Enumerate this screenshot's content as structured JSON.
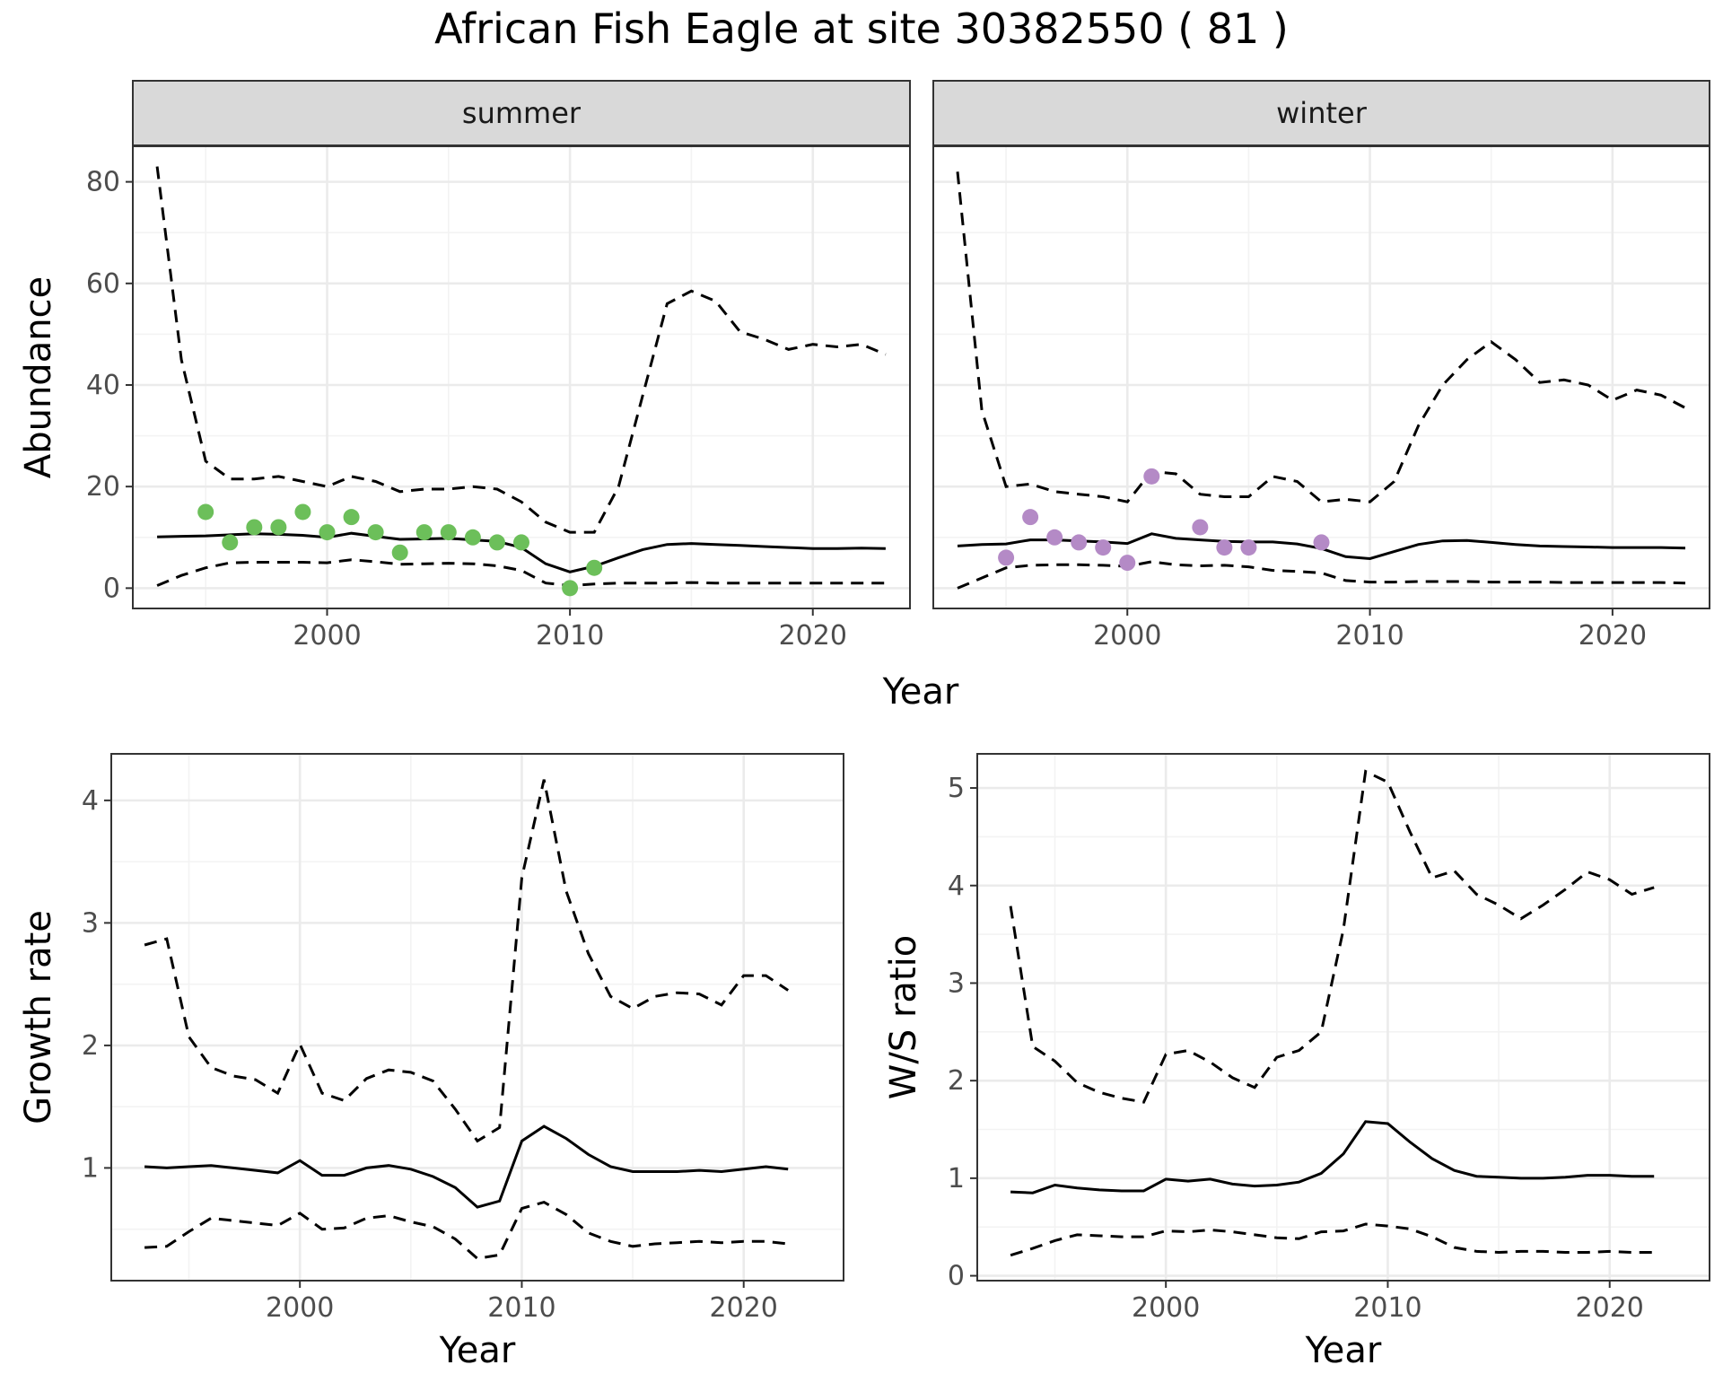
{
  "title": "African Fish Eagle at site 30382550 ( 81 )",
  "colors": {
    "summer_points": "#6cbf5a",
    "winter_points": "#b48ac6",
    "lines": "#000000"
  },
  "chart_data": [
    {
      "type": "line",
      "facet": "summer",
      "xlabel": "Year",
      "ylabel": "Abundance",
      "xlim": [
        1992,
        2024
      ],
      "ylim": [
        -4,
        87
      ],
      "xticks": [
        2000,
        2010,
        2020
      ],
      "yticks": [
        0,
        20,
        40,
        60,
        80
      ],
      "grid": true,
      "x": [
        1993,
        1994,
        1995,
        1996,
        1997,
        1998,
        1999,
        2000,
        2001,
        2002,
        2003,
        2004,
        2005,
        2006,
        2007,
        2008,
        2009,
        2010,
        2011,
        2012,
        2013,
        2014,
        2015,
        2016,
        2017,
        2018,
        2019,
        2020,
        2021,
        2022,
        2023
      ],
      "series": [
        {
          "style": "solid",
          "values": [
            10.1,
            10.2,
            10.3,
            10.5,
            10.7,
            10.6,
            10.4,
            10.0,
            10.8,
            10.2,
            9.6,
            9.7,
            9.8,
            9.5,
            9.2,
            8.0,
            4.8,
            3.2,
            4.3,
            6.0,
            7.6,
            8.6,
            8.8,
            8.6,
            8.4,
            8.2,
            8.0,
            7.8,
            7.8,
            7.9,
            7.8
          ]
        },
        {
          "style": "dashed",
          "values": [
            83,
            45,
            25,
            21.5,
            21.5,
            22,
            21,
            20,
            22,
            21,
            19,
            19.5,
            19.5,
            20,
            19.5,
            17,
            13,
            11,
            11,
            20,
            38,
            56,
            58.5,
            56.5,
            50.5,
            49,
            47,
            48,
            47.5,
            48,
            46
          ]
        },
        {
          "style": "dashed",
          "values": [
            0.5,
            2.5,
            4.0,
            5.0,
            5.1,
            5.1,
            5.1,
            5.0,
            5.6,
            5.2,
            4.7,
            4.8,
            4.9,
            4.8,
            4.4,
            3.5,
            1.0,
            0.5,
            0.8,
            1.0,
            1.0,
            1.0,
            1.1,
            1.0,
            1.0,
            1.0,
            1.0,
            1.0,
            1.0,
            1.0,
            1.0
          ]
        }
      ],
      "points": {
        "x": [
          1995,
          1996,
          1997,
          1998,
          1999,
          2000,
          2001,
          2002,
          2003,
          2004,
          2005,
          2006,
          2007,
          2008,
          2010,
          2011
        ],
        "y": [
          15,
          9,
          12,
          12,
          15,
          11,
          14,
          11,
          7,
          11,
          11,
          10,
          9,
          9,
          0,
          4
        ]
      }
    },
    {
      "type": "line",
      "facet": "winter",
      "xlabel": "Year",
      "ylabel": "Abundance",
      "xlim": [
        1992,
        2024
      ],
      "ylim": [
        -4,
        87
      ],
      "xticks": [
        2000,
        2010,
        2020
      ],
      "yticks": [
        0,
        20,
        40,
        60,
        80
      ],
      "grid": true,
      "x": [
        1993,
        1994,
        1995,
        1996,
        1997,
        1998,
        1999,
        2000,
        2001,
        2002,
        2003,
        2004,
        2005,
        2006,
        2007,
        2008,
        2009,
        2010,
        2011,
        2012,
        2013,
        2014,
        2015,
        2016,
        2017,
        2018,
        2019,
        2020,
        2021,
        2022,
        2023
      ],
      "series": [
        {
          "style": "solid",
          "values": [
            8.3,
            8.6,
            8.7,
            9.5,
            9.5,
            9.3,
            9.1,
            8.8,
            10.7,
            9.8,
            9.5,
            9.2,
            9.1,
            9.1,
            8.7,
            7.8,
            6.2,
            5.8,
            7.2,
            8.6,
            9.3,
            9.4,
            9.0,
            8.6,
            8.3,
            8.2,
            8.1,
            8.0,
            8.0,
            8.0,
            7.9
          ]
        },
        {
          "style": "dashed",
          "values": [
            82,
            35,
            20,
            20.5,
            19,
            18.5,
            18,
            17,
            23,
            22.5,
            18.5,
            18,
            18,
            22,
            21,
            17,
            17.5,
            17,
            21,
            32,
            40,
            45,
            48.5,
            45,
            40.5,
            41,
            40,
            37,
            39,
            38,
            35.5
          ]
        },
        {
          "style": "dashed",
          "values": [
            0,
            2,
            4.0,
            4.5,
            4.6,
            4.6,
            4.5,
            4.3,
            5.2,
            4.6,
            4.4,
            4.5,
            4.2,
            3.5,
            3.3,
            3.0,
            1.5,
            1.2,
            1.2,
            1.3,
            1.3,
            1.3,
            1.2,
            1.2,
            1.2,
            1.1,
            1.1,
            1.1,
            1.1,
            1.1,
            1.0
          ]
        }
      ],
      "points": {
        "x": [
          1995,
          1996,
          1997,
          1998,
          1999,
          2000,
          2001,
          2003,
          2004,
          2005,
          2008
        ],
        "y": [
          6,
          14,
          10,
          9,
          8,
          5,
          22,
          12,
          8,
          8,
          9
        ]
      }
    },
    {
      "type": "line",
      "xlabel": "Year",
      "ylabel": "Growth rate",
      "xlim": [
        1991.5,
        2024.5
      ],
      "ylim": [
        0.08,
        4.38
      ],
      "xticks": [
        2000,
        2010,
        2020
      ],
      "yticks": [
        1,
        2,
        3,
        4
      ],
      "grid": true,
      "x": [
        1993,
        1994,
        1995,
        1996,
        1997,
        1998,
        1999,
        2000,
        2001,
        2002,
        2003,
        2004,
        2005,
        2006,
        2007,
        2008,
        2009,
        2010,
        2011,
        2012,
        2013,
        2014,
        2015,
        2016,
        2017,
        2018,
        2019,
        2020,
        2021,
        2022
      ],
      "series": [
        {
          "style": "solid",
          "values": [
            1.01,
            1.0,
            1.01,
            1.02,
            1.0,
            0.98,
            0.96,
            1.06,
            0.94,
            0.94,
            1.0,
            1.02,
            0.99,
            0.93,
            0.84,
            0.68,
            0.73,
            1.22,
            1.34,
            1.24,
            1.11,
            1.01,
            0.97,
            0.97,
            0.97,
            0.98,
            0.97,
            0.99,
            1.01,
            0.99
          ]
        },
        {
          "style": "dashed",
          "values": [
            2.82,
            2.87,
            2.07,
            1.82,
            1.75,
            1.72,
            1.61,
            2.01,
            1.61,
            1.55,
            1.73,
            1.8,
            1.78,
            1.71,
            1.48,
            1.22,
            1.33,
            3.37,
            4.17,
            3.26,
            2.75,
            2.4,
            2.3,
            2.4,
            2.43,
            2.42,
            2.33,
            2.57,
            2.57,
            2.45
          ]
        },
        {
          "style": "dashed",
          "values": [
            0.35,
            0.36,
            0.48,
            0.59,
            0.57,
            0.55,
            0.53,
            0.63,
            0.5,
            0.51,
            0.59,
            0.61,
            0.56,
            0.52,
            0.42,
            0.26,
            0.29,
            0.67,
            0.72,
            0.62,
            0.47,
            0.4,
            0.36,
            0.38,
            0.39,
            0.4,
            0.39,
            0.4,
            0.4,
            0.38
          ]
        }
      ]
    },
    {
      "type": "line",
      "xlabel": "Year",
      "ylabel": "W/S ratio",
      "xlim": [
        1991.5,
        2024.5
      ],
      "ylim": [
        -0.05,
        5.35
      ],
      "xticks": [
        2000,
        2010,
        2020
      ],
      "yticks": [
        0,
        1,
        2,
        3,
        4,
        5
      ],
      "grid": true,
      "x": [
        1993,
        1994,
        1995,
        1996,
        1997,
        1998,
        1999,
        2000,
        2001,
        2002,
        2003,
        2004,
        2005,
        2006,
        2007,
        2008,
        2009,
        2010,
        2011,
        2012,
        2013,
        2014,
        2015,
        2016,
        2017,
        2018,
        2019,
        2020,
        2021,
        2022
      ],
      "series": [
        {
          "style": "solid",
          "values": [
            0.86,
            0.85,
            0.93,
            0.9,
            0.88,
            0.87,
            0.87,
            0.99,
            0.97,
            0.99,
            0.94,
            0.92,
            0.93,
            0.96,
            1.05,
            1.25,
            1.58,
            1.56,
            1.37,
            1.2,
            1.08,
            1.02,
            1.01,
            1.0,
            1.0,
            1.01,
            1.03,
            1.03,
            1.02,
            1.02
          ]
        },
        {
          "style": "dashed",
          "values": [
            3.79,
            2.35,
            2.2,
            1.98,
            1.88,
            1.82,
            1.78,
            2.27,
            2.31,
            2.19,
            2.03,
            1.93,
            2.24,
            2.31,
            2.5,
            3.55,
            5.17,
            5.06,
            4.55,
            4.08,
            4.15,
            3.91,
            3.8,
            3.66,
            3.8,
            3.96,
            4.14,
            4.06,
            3.91,
            3.98
          ]
        },
        {
          "style": "dashed",
          "values": [
            0.21,
            0.28,
            0.36,
            0.42,
            0.41,
            0.4,
            0.4,
            0.46,
            0.45,
            0.47,
            0.45,
            0.42,
            0.39,
            0.38,
            0.45,
            0.46,
            0.53,
            0.51,
            0.48,
            0.4,
            0.29,
            0.25,
            0.24,
            0.25,
            0.25,
            0.24,
            0.24,
            0.25,
            0.24,
            0.24
          ]
        }
      ]
    }
  ]
}
